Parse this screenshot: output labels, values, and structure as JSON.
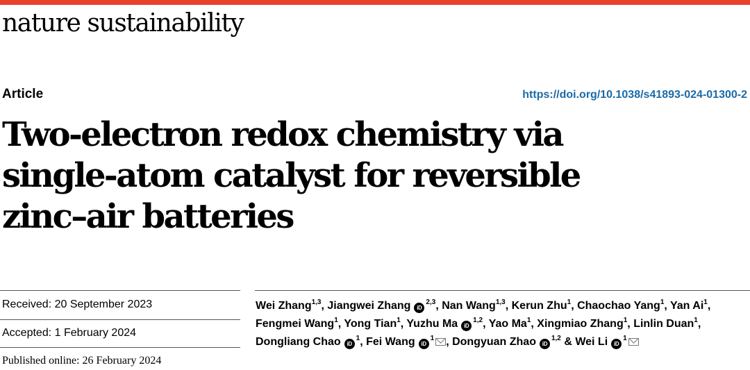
{
  "header": {
    "journal_name": "nature sustainability",
    "accent_color": "#e8412c"
  },
  "article": {
    "type": "Article",
    "doi": "https://doi.org/10.1038/s41893-024-01300-2",
    "doi_color": "#1a6aa8",
    "title": "Two-electron redox chemistry via single-atom catalyst for reversible zinc–air batteries"
  },
  "dates": {
    "received": "Received: 20 September 2023",
    "accepted": "Accepted: 1 February 2024",
    "published": "Published online: 26 February 2024"
  },
  "authors": [
    {
      "name": "Wei Zhang",
      "aff": "1,3",
      "orcid": false,
      "mail": false,
      "sep": ", "
    },
    {
      "name": "Jiangwei Zhang",
      "aff": "2,3",
      "orcid": true,
      "mail": false,
      "sep": ", "
    },
    {
      "name": "Nan Wang",
      "aff": "1,3",
      "orcid": false,
      "mail": false,
      "sep": ", "
    },
    {
      "name": "Kerun Zhu",
      "aff": "1",
      "orcid": false,
      "mail": false,
      "sep": ", "
    },
    {
      "name": "Chaochao Yang",
      "aff": "1",
      "orcid": false,
      "mail": false,
      "sep": ", "
    },
    {
      "name": "Yan Ai",
      "aff": "1",
      "orcid": false,
      "mail": false,
      "sep": ", "
    },
    {
      "name": "Fengmei Wang",
      "aff": "1",
      "orcid": false,
      "mail": false,
      "sep": ", "
    },
    {
      "name": "Yong Tian",
      "aff": "1",
      "orcid": false,
      "mail": false,
      "sep": ", "
    },
    {
      "name": "Yuzhu Ma",
      "aff": "1,2",
      "orcid": true,
      "mail": false,
      "sep": ", "
    },
    {
      "name": "Yao Ma",
      "aff": "1",
      "orcid": false,
      "mail": false,
      "sep": ", "
    },
    {
      "name": "Xingmiao Zhang",
      "aff": "1",
      "orcid": false,
      "mail": false,
      "sep": ", "
    },
    {
      "name": "Linlin Duan",
      "aff": "1",
      "orcid": false,
      "mail": false,
      "sep": ", "
    },
    {
      "name": "Dongliang Chao",
      "aff": "1",
      "orcid": true,
      "mail": false,
      "sep": ", "
    },
    {
      "name": "Fei Wang",
      "aff": "1",
      "orcid": true,
      "mail": true,
      "sep": ", "
    },
    {
      "name": "Dongyuan Zhao",
      "aff": "1,2",
      "orcid": true,
      "mail": false,
      "sep": " & "
    },
    {
      "name": "Wei Li",
      "aff": "1",
      "orcid": true,
      "mail": true,
      "sep": ""
    }
  ]
}
